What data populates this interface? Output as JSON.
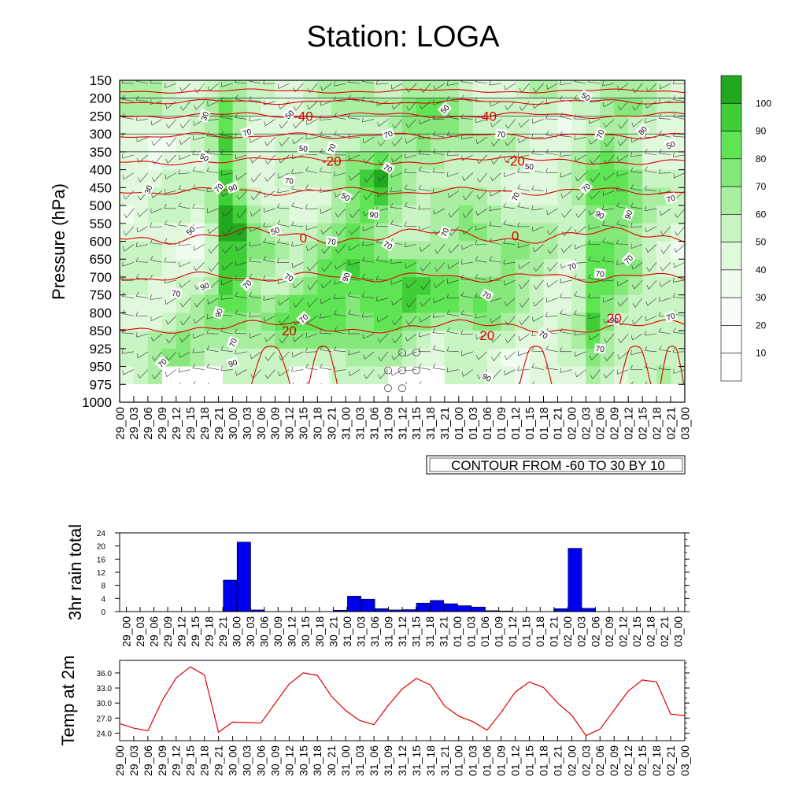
{
  "title": "Station: LOGA",
  "colors": {
    "shade": [
      "#ffffff",
      "#f2fdf1",
      "#e0f9dc",
      "#c9f4c3",
      "#a9eea1",
      "#84e97a",
      "#5fe554",
      "#3fce37",
      "#22a81e"
    ],
    "temp_contour": "#e00000",
    "rain_bar": "#0000f0",
    "temp_line": "#e00000"
  },
  "time_labels": [
    "29_00",
    "29_03",
    "29_06",
    "29_09",
    "29_12",
    "29_15",
    "29_18",
    "29_21",
    "30_00",
    "30_03",
    "30_06",
    "30_09",
    "30_12",
    "30_15",
    "30_18",
    "30_21",
    "31_00",
    "31_03",
    "31_06",
    "31_09",
    "31_12",
    "31_15",
    "31_18",
    "31_21",
    "01_00",
    "01_03",
    "01_06",
    "01_09",
    "01_12",
    "01_15",
    "01_18",
    "01_21",
    "02_00",
    "02_03",
    "02_06",
    "02_09",
    "02_12",
    "02_15",
    "02_18",
    "02_21",
    "03_00"
  ],
  "chart_data": [
    {
      "type": "heatmap",
      "ylabel": "Pressure (hPa)",
      "y_ticks": [
        150,
        200,
        250,
        300,
        350,
        400,
        450,
        500,
        550,
        600,
        650,
        700,
        750,
        800,
        850,
        925,
        950,
        975,
        1000
      ],
      "y_reversed": true,
      "colorbar": {
        "levels": [
          10,
          20,
          30,
          40,
          50,
          60,
          70,
          80,
          90,
          100
        ]
      },
      "info_label": "CONTOUR FROM -60 TO 30 BY 10",
      "temperature_contour_labels": [
        {
          "value": "-40",
          "x": "30_15",
          "p": 250
        },
        {
          "value": "-40",
          "x": "01_06",
          "p": 250
        },
        {
          "value": "-20",
          "x": "30_21",
          "p": 375
        },
        {
          "value": "-20",
          "x": "01_12",
          "p": 375
        },
        {
          "value": "0",
          "x": "30_15",
          "p": 590
        },
        {
          "value": "0",
          "x": "01_12",
          "p": 585
        },
        {
          "value": "20",
          "x": "30_12",
          "p": 850
        },
        {
          "value": "20",
          "x": "01_06",
          "p": 870
        },
        {
          "value": "20",
          "x": "02_09",
          "p": 815
        }
      ],
      "rh_contour_labels": [
        {
          "value": "30",
          "x": "29_18",
          "p": 250
        },
        {
          "value": "50",
          "x": "30_12",
          "p": 245
        },
        {
          "value": "70",
          "x": "30_03",
          "p": 295
        },
        {
          "value": "50",
          "x": "30_15",
          "p": 340
        },
        {
          "value": "50",
          "x": "29_18",
          "p": 365
        },
        {
          "value": "70",
          "x": "30_21",
          "p": 340
        },
        {
          "value": "50",
          "x": "31_21",
          "p": 230
        },
        {
          "value": "70",
          "x": "31_09",
          "p": 300
        },
        {
          "value": "70",
          "x": "01_09",
          "p": 300
        },
        {
          "value": "50",
          "x": "02_03",
          "p": 195
        },
        {
          "value": "70",
          "x": "02_06",
          "p": 300
        },
        {
          "value": "80",
          "x": "02_15",
          "p": 290
        },
        {
          "value": "50",
          "x": "02_21",
          "p": 330
        },
        {
          "value": "50",
          "x": "01_15",
          "p": 390
        },
        {
          "value": "70",
          "x": "31_09",
          "p": 395
        },
        {
          "value": "30",
          "x": "29_06",
          "p": 455
        },
        {
          "value": "70",
          "x": "29_21",
          "p": 450
        },
        {
          "value": "90",
          "x": "30_00",
          "p": 450
        },
        {
          "value": "70",
          "x": "30_12",
          "p": 430
        },
        {
          "value": "50",
          "x": "31_00",
          "p": 475
        },
        {
          "value": "70",
          "x": "01_12",
          "p": 475
        },
        {
          "value": "70",
          "x": "02_03",
          "p": 450
        },
        {
          "value": "70",
          "x": "02_21",
          "p": 480
        },
        {
          "value": "90",
          "x": "31_06",
          "p": 525
        },
        {
          "value": "90",
          "x": "02_06",
          "p": 525
        },
        {
          "value": "90",
          "x": "02_12",
          "p": 525
        },
        {
          "value": "50",
          "x": "29_15",
          "p": 570
        },
        {
          "value": "50",
          "x": "30_09",
          "p": 570
        },
        {
          "value": "70",
          "x": "30_21",
          "p": 600
        },
        {
          "value": "70",
          "x": "31_09",
          "p": 610
        },
        {
          "value": "70",
          "x": "31_21",
          "p": 575
        },
        {
          "value": "70",
          "x": "02_12",
          "p": 650
        },
        {
          "value": "70",
          "x": "02_00",
          "p": 670
        },
        {
          "value": "70",
          "x": "02_06",
          "p": 690
        },
        {
          "value": "70",
          "x": "30_12",
          "p": 700
        },
        {
          "value": "90",
          "x": "31_00",
          "p": 700
        },
        {
          "value": "70",
          "x": "30_03",
          "p": 720
        },
        {
          "value": "90",
          "x": "29_18",
          "p": 725
        },
        {
          "value": "70",
          "x": "29_12",
          "p": 745
        },
        {
          "value": "70",
          "x": "01_06",
          "p": 750
        },
        {
          "value": "90",
          "x": "29_21",
          "p": 800
        },
        {
          "value": "70",
          "x": "30_15",
          "p": 815
        },
        {
          "value": "70",
          "x": "02_21",
          "p": 810
        },
        {
          "value": "90",
          "x": "02_09",
          "p": 820
        },
        {
          "value": "70",
          "x": "01_18",
          "p": 865
        },
        {
          "value": "70",
          "x": "30_00",
          "p": 900
        },
        {
          "value": "70",
          "x": "29_09",
          "p": 945
        },
        {
          "value": "90",
          "x": "30_00",
          "p": 945
        },
        {
          "value": "70",
          "x": "02_06",
          "p": 925
        },
        {
          "value": "90",
          "x": "01_06",
          "p": 965
        }
      ]
    },
    {
      "type": "bar",
      "ylabel": "3hr rain total",
      "ylim": [
        0,
        24
      ],
      "y_ticks": [
        0,
        4,
        8,
        12,
        16,
        20,
        24
      ],
      "values": [
        0,
        0,
        0,
        0,
        0,
        0,
        0,
        9.6,
        21.2,
        0.5,
        0,
        0,
        0,
        0,
        0,
        0.4,
        4.7,
        3.8,
        0.9,
        0.5,
        0.6,
        2.6,
        3.4,
        2.4,
        1.8,
        1.4,
        0.3,
        0.2,
        0,
        0,
        0,
        0.9,
        19.3,
        1.0,
        0,
        0,
        0,
        0,
        0,
        0,
        0
      ]
    },
    {
      "type": "line",
      "ylabel": "Temp at 2m",
      "ylim": [
        22.5,
        38.5
      ],
      "y_ticks": [
        24.0,
        27.0,
        30.0,
        33.0,
        36.0
      ],
      "y_tick_labels": [
        "24.0",
        "27.0",
        "30.0",
        "33.0",
        "36.0"
      ],
      "values": [
        25.9,
        25.0,
        24.5,
        30.4,
        35.0,
        37.2,
        35.6,
        24.2,
        26.2,
        26.1,
        26.0,
        29.9,
        33.8,
        36.0,
        35.5,
        31.3,
        28.5,
        26.5,
        25.7,
        29.5,
        32.8,
        34.9,
        33.6,
        29.4,
        27.4,
        26.3,
        24.6,
        28.1,
        32.2,
        34.2,
        33.1,
        30.0,
        27.6,
        23.5,
        24.8,
        28.6,
        32.4,
        34.6,
        34.2,
        27.8,
        27.5
      ]
    }
  ]
}
